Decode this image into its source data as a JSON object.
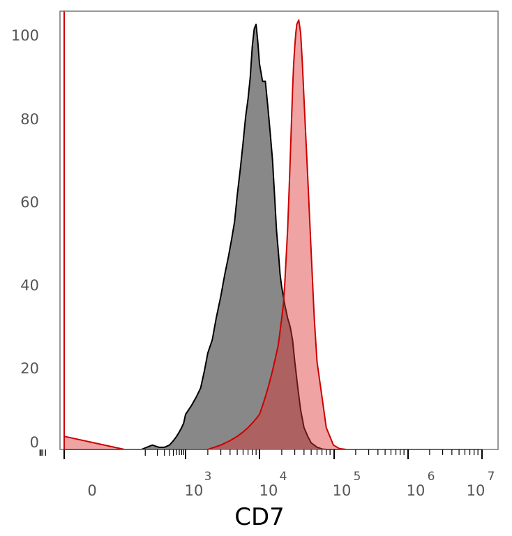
{
  "chart_data": {
    "type": "area",
    "title": "",
    "xlabel": "CD7",
    "ylabel": "",
    "x_scale": "biexponential",
    "ylim": [
      0,
      100
    ],
    "y_ticks": [
      "0",
      "20",
      "40",
      "60",
      "80",
      "100"
    ],
    "x_ticks": [
      {
        "value": 0,
        "base": "0",
        "exp": ""
      },
      {
        "value": 1000,
        "base": "10",
        "exp": "3"
      },
      {
        "value": 10000,
        "base": "10",
        "exp": "4"
      },
      {
        "value": 100000,
        "base": "10",
        "exp": "5"
      },
      {
        "value": 1000000,
        "base": "10",
        "exp": "6"
      },
      {
        "value": 10000000,
        "base": "10",
        "exp": "7"
      }
    ],
    "grid": false,
    "legend": "none",
    "series": [
      {
        "color": "#000000",
        "fill": "#888888",
        "x": [
          0,
          0,
          0,
          0,
          30,
          80,
          150,
          220,
          300,
          400,
          500,
          600,
          700,
          800,
          900,
          1000,
          1200,
          1400,
          1600,
          1800,
          2000,
          2300,
          2600,
          3000,
          3400,
          3800,
          4200,
          4600,
          5000,
          5500,
          6000,
          6500,
          7000,
          7500,
          8000,
          8500,
          9000,
          9500,
          10000,
          11000,
          12000,
          13000,
          14000,
          15000,
          16000,
          17000,
          18000,
          19000,
          20000,
          21000,
          22000,
          24000,
          26000,
          28000,
          30000,
          33000,
          36000,
          40000,
          45000,
          50000,
          55000,
          60000,
          65000,
          70000,
          80000,
          90000,
          100000,
          120000,
          150000,
          1000000,
          10000000
        ],
        "y": [
          0,
          100,
          5,
          0,
          0,
          0,
          1,
          0.5,
          0.5,
          1,
          2,
          3,
          4,
          5,
          6,
          8,
          10,
          12,
          14,
          18,
          22,
          25,
          30,
          35,
          40,
          44,
          48,
          52,
          58,
          64,
          70,
          76,
          80,
          85,
          92,
          96,
          97,
          93,
          88,
          84,
          84,
          78,
          72,
          66,
          58,
          50,
          45,
          40,
          37,
          35,
          33,
          30,
          28,
          25,
          20,
          14,
          9,
          5,
          3,
          1.5,
          1,
          0.5,
          0.3,
          0.1,
          0,
          0,
          0,
          0,
          0,
          0,
          0
        ]
      },
      {
        "color": "#cc0000",
        "fill": "rgba(220,50,50,0.45)",
        "x": [
          0,
          0,
          0,
          0,
          0,
          30,
          100,
          300,
          600,
          1000,
          1500,
          2000,
          3000,
          4000,
          5000,
          6000,
          7000,
          8000,
          9000,
          10000,
          11000,
          12000,
          13000,
          14000,
          15000,
          16000,
          17000,
          18000,
          19000,
          20000,
          21000,
          22000,
          23000,
          24000,
          25000,
          26000,
          27000,
          28000,
          29000,
          30000,
          31000,
          32000,
          34000,
          36000,
          38000,
          40000,
          45000,
          50000,
          55000,
          60000,
          70000,
          80000,
          100000,
          120000,
          150000,
          1000000,
          10000000
        ],
        "y": [
          0,
          60,
          100,
          40,
          3,
          0,
          0,
          0,
          0,
          0,
          0,
          0,
          1,
          2,
          3,
          4,
          5,
          6,
          7,
          8,
          10,
          12,
          14,
          16,
          18,
          20,
          22,
          24,
          27,
          30,
          33,
          38,
          44,
          50,
          58,
          66,
          74,
          82,
          88,
          92,
          95,
          97,
          98,
          95,
          88,
          80,
          62,
          45,
          30,
          20,
          12,
          5,
          1,
          0.2,
          0,
          0,
          0
        ]
      }
    ]
  }
}
